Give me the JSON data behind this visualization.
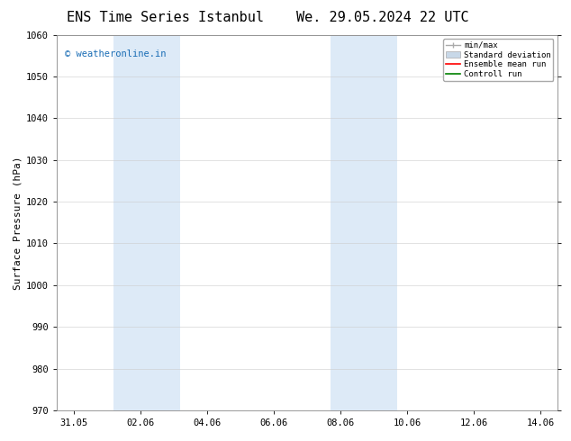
{
  "title_left": "ENS Time Series Istanbul",
  "title_right": "We. 29.05.2024 22 UTC",
  "ylabel": "Surface Pressure (hPa)",
  "ylim": [
    970,
    1060
  ],
  "yticks": [
    970,
    980,
    990,
    1000,
    1010,
    1020,
    1030,
    1040,
    1050,
    1060
  ],
  "xtick_labels": [
    "31.05",
    "02.06",
    "04.06",
    "06.06",
    "08.06",
    "10.06",
    "12.06",
    "14.06"
  ],
  "xtick_positions": [
    0,
    2,
    4,
    6,
    8,
    10,
    12,
    14
  ],
  "xlim": [
    -0.5,
    14.5
  ],
  "shaded_bands": [
    {
      "xmin": 1.2,
      "xmax": 2.2
    },
    {
      "xmin": 2.2,
      "xmax": 3.2
    },
    {
      "xmin": 7.7,
      "xmax": 8.7
    },
    {
      "xmin": 8.7,
      "xmax": 9.7
    }
  ],
  "shade_color": "#ddeaf7",
  "watermark_text": "© weatheronline.in",
  "watermark_color": "#1a6db5",
  "legend_labels": [
    "min/max",
    "Standard deviation",
    "Ensemble mean run",
    "Controll run"
  ],
  "legend_line_colors": [
    "#aaaaaa",
    "#c8d8e8",
    "#ff0000",
    "#008000"
  ],
  "background_color": "#ffffff",
  "plot_bg_color": "#ffffff",
  "grid_color": "#cccccc",
  "title_fontsize": 11,
  "axis_label_fontsize": 8,
  "tick_fontsize": 7.5,
  "watermark_fontsize": 7.5
}
